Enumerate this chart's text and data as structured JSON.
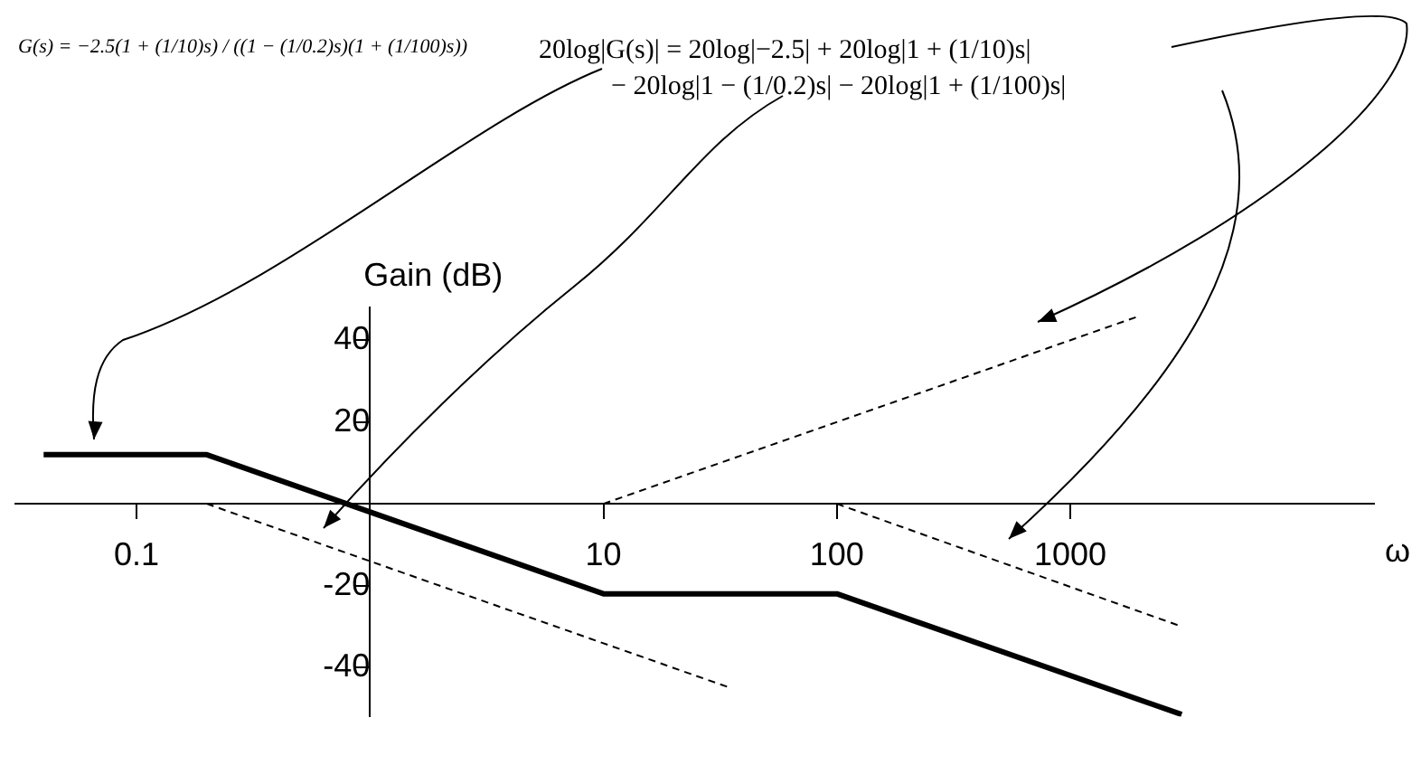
{
  "chart_data": {
    "type": "line",
    "xlabel": "ω",
    "ylabel": "Gain (dB)",
    "annotations": [
      "G(s) = −2.5(1 + (1/10)s) / ((1 − (1/0.2)s)(1 + (1/100)s))",
      "20log|G(s)| = 20log|−2.5| + 20log|1 + (1/10)s|",
      "− 20log|1 − (1/0.2)s| − 20log|1 + (1/100)s|"
    ],
    "log": "x",
    "xlim": [
      0.03,
      20000
    ],
    "xticks": [
      0.1,
      {
        "value": 1,
        "label": null
      },
      10,
      100,
      1000
    ],
    "ylim": [
      -52,
      48
    ],
    "yticks": [
      -40,
      -20,
      {
        "value": 0,
        "label": null
      },
      20,
      40
    ],
    "grid": false,
    "legend": false,
    "series": [
      {
        "color": "#000000",
        "x": [
          0.04,
          0.2,
          10,
          100,
          3000
        ],
        "values": [
          12,
          12,
          -22,
          -22,
          -51.5
        ],
        "line_style": "solid"
      },
      {
        "color": "#000000",
        "x": [
          10,
          2000
        ],
        "values": [
          0,
          46
        ],
        "line_style": "dashed"
      },
      {
        "color": "#000000",
        "x": [
          0.2,
          35
        ],
        "values": [
          0,
          -45
        ],
        "line_style": "dashed"
      },
      {
        "color": "#000000",
        "x": [
          100,
          3000
        ],
        "values": [
          0,
          -30
        ],
        "line_style": "dashed"
      }
    ]
  }
}
